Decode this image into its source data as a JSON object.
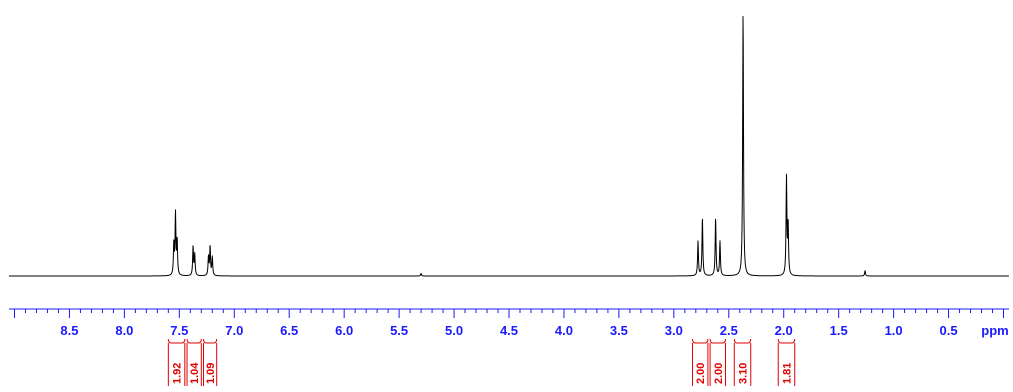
{
  "chart_data": {
    "type": "line",
    "title": "",
    "xlabel": "ppm",
    "ylabel": "",
    "x_reversed": true,
    "xlim": [
      9.05,
      -0.05
    ],
    "major_ticks": [
      8.5,
      8.0,
      7.5,
      7.0,
      6.5,
      6.0,
      5.5,
      5.0,
      4.5,
      4.0,
      3.5,
      3.0,
      2.5,
      2.0,
      1.5,
      1.0,
      0.5
    ],
    "minor_tick_step": 0.1,
    "tick_labels": [
      "8.5",
      "8.0",
      "7.5",
      "7.0",
      "6.5",
      "6.0",
      "5.5",
      "5.0",
      "4.5",
      "4.0",
      "3.5",
      "3.0",
      "2.5",
      "2.0",
      "1.5",
      "1.0",
      "0.5"
    ],
    "unit_label": "ppm",
    "peaks": [
      {
        "ppm": 7.55,
        "intensity": 0.12
      },
      {
        "ppm": 7.535,
        "intensity": 0.23
      },
      {
        "ppm": 7.52,
        "intensity": 0.13
      },
      {
        "ppm": 7.375,
        "intensity": 0.11
      },
      {
        "ppm": 7.36,
        "intensity": 0.08
      },
      {
        "ppm": 7.235,
        "intensity": 0.07
      },
      {
        "ppm": 7.22,
        "intensity": 0.11
      },
      {
        "ppm": 7.2,
        "intensity": 0.07
      },
      {
        "ppm": 5.3,
        "intensity": 0.01
      },
      {
        "ppm": 2.78,
        "intensity": 0.13
      },
      {
        "ppm": 2.74,
        "intensity": 0.22
      },
      {
        "ppm": 2.62,
        "intensity": 0.22
      },
      {
        "ppm": 2.58,
        "intensity": 0.13
      },
      {
        "ppm": 2.37,
        "intensity": 1.0
      },
      {
        "ppm": 1.975,
        "intensity": 0.37
      },
      {
        "ppm": 1.96,
        "intensity": 0.19
      },
      {
        "ppm": 1.26,
        "intensity": 0.02
      }
    ],
    "integrals": [
      {
        "label": "1.92",
        "from": 7.6,
        "to": 7.45
      },
      {
        "label": "1.04",
        "from": 7.43,
        "to": 7.3
      },
      {
        "label": "1.09",
        "from": 7.28,
        "to": 7.16
      },
      {
        "label": "2.00",
        "from": 2.83,
        "to": 2.69
      },
      {
        "label": "2.00",
        "from": 2.67,
        "to": 2.53
      },
      {
        "label": "3.10",
        "from": 2.45,
        "to": 2.3
      },
      {
        "label": "1.81",
        "from": 2.05,
        "to": 1.9
      }
    ],
    "colors": {
      "spectrum": "#000000",
      "axis": "#1a1aff",
      "integrals": "#e00000"
    }
  }
}
